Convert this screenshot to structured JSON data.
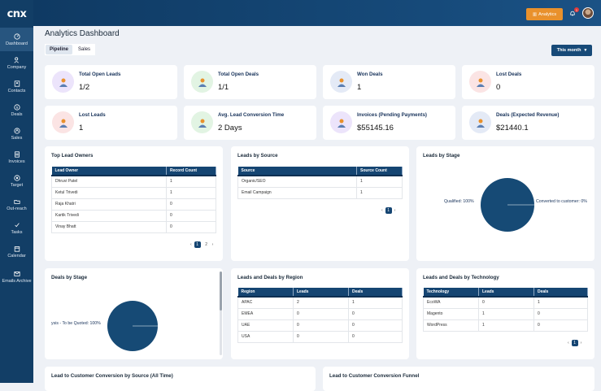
{
  "app": {
    "logo": "cnx"
  },
  "sidebar": {
    "items": [
      {
        "label": "Dashboard",
        "icon": "dashboard-icon",
        "active": true
      },
      {
        "label": "Company",
        "icon": "people-icon"
      },
      {
        "label": "Contacts",
        "icon": "contacts-icon"
      },
      {
        "label": "Deals",
        "icon": "dollar-icon"
      },
      {
        "label": "Sales",
        "icon": "sales-icon"
      },
      {
        "label": "Invoices",
        "icon": "invoice-icon"
      },
      {
        "label": "Target",
        "icon": "target-icon"
      },
      {
        "label": "Out-reach",
        "icon": "folder-icon"
      },
      {
        "label": "Tasks",
        "icon": "tasks-icon"
      },
      {
        "label": "Calendar",
        "icon": "calendar-icon"
      },
      {
        "label": "Emails Archive",
        "icon": "mail-icon"
      }
    ]
  },
  "header": {
    "analytics_label": "Analytics",
    "notification_count": "1"
  },
  "page": {
    "title": "Analytics Dashboard",
    "tabs": [
      "Pipeline",
      "Sales"
    ],
    "period": "This month"
  },
  "stats": [
    {
      "label": "Total Open Leads",
      "value": "1/2",
      "icon": "leads-icon",
      "color": "#ece4fb"
    },
    {
      "label": "Total Open Deals",
      "value": "1/1",
      "icon": "deals-icon",
      "color": "#e2f4e3"
    },
    {
      "label": "Won Deals",
      "value": "1",
      "icon": "won-icon",
      "color": "#e4eaf6"
    },
    {
      "label": "Lost Deals",
      "value": "0",
      "icon": "lost-icon",
      "color": "#fbe4e4"
    },
    {
      "label": "Lost Leads",
      "value": "1",
      "icon": "lost-leads-icon",
      "color": "#fbe4e4"
    },
    {
      "label": "Avg. Lead Conversion Time",
      "value": "2 Days",
      "icon": "time-icon",
      "color": "#e2f4e3"
    },
    {
      "label": "Invoices (Pending Payments)",
      "value": "$55145.16",
      "icon": "invoice-chart-icon",
      "color": "#ece4fb"
    },
    {
      "label": "Deals (Expected Revenue)",
      "value": "$21440.1",
      "icon": "revenue-icon",
      "color": "#e4eaf6"
    }
  ],
  "top_lead_owners": {
    "title": "Top Lead Owners",
    "columns": [
      "Lead Owner",
      "Record Count"
    ],
    "rows": [
      [
        "Dhruvi Patel",
        "1"
      ],
      [
        "Ketul Trivedi",
        "1"
      ],
      [
        "Raja Khatri",
        "0"
      ],
      [
        "Kartik Trivedi",
        "0"
      ],
      [
        "Vinay Bhatt",
        "0"
      ]
    ],
    "pages": [
      "1",
      "2"
    ]
  },
  "leads_by_source": {
    "title": "Leads by Source",
    "columns": [
      "Source",
      "Source Count"
    ],
    "rows": [
      [
        "Organic/SEO",
        "1"
      ],
      [
        "Email Campaign",
        "1"
      ]
    ],
    "pages": [
      "1"
    ]
  },
  "leads_by_stage": {
    "title": "Leads by Stage",
    "labels": [
      "Qualified: 100%",
      "Converted to customer: 0%"
    ]
  },
  "deals_by_stage": {
    "title": "Deals by Stage",
    "labels": [
      "ysis - To be Quoted: 100%"
    ]
  },
  "region": {
    "title": "Leads and Deals by Region",
    "columns": [
      "Region",
      "Leads",
      "Deals"
    ],
    "rows": [
      [
        "APAC",
        "2",
        "1"
      ],
      [
        "EMEA",
        "0",
        "0"
      ],
      [
        "UAE",
        "0",
        "0"
      ],
      [
        "USA",
        "0",
        "0"
      ]
    ]
  },
  "technology": {
    "title": "Leads and Deals by Technology",
    "columns": [
      "Technology",
      "Leads",
      "Deals"
    ],
    "rows": [
      [
        "EcoWA",
        "0",
        "1"
      ],
      [
        "Magento",
        "1",
        "0"
      ],
      [
        "WordPress",
        "1",
        "0"
      ]
    ],
    "pages": [
      "1"
    ]
  },
  "bottom": {
    "left_title": "Lead to Customer Conversion by Source (All Time)",
    "right_title": "Lead to Customer Conversion Funnel"
  },
  "chart_data": [
    {
      "type": "pie",
      "title": "Leads by Stage",
      "categories": [
        "Qualified",
        "Converted to customer"
      ],
      "values": [
        100,
        0
      ]
    },
    {
      "type": "pie",
      "title": "Deals by Stage",
      "categories": [
        "ysis - To be Quoted"
      ],
      "values": [
        100
      ]
    }
  ]
}
